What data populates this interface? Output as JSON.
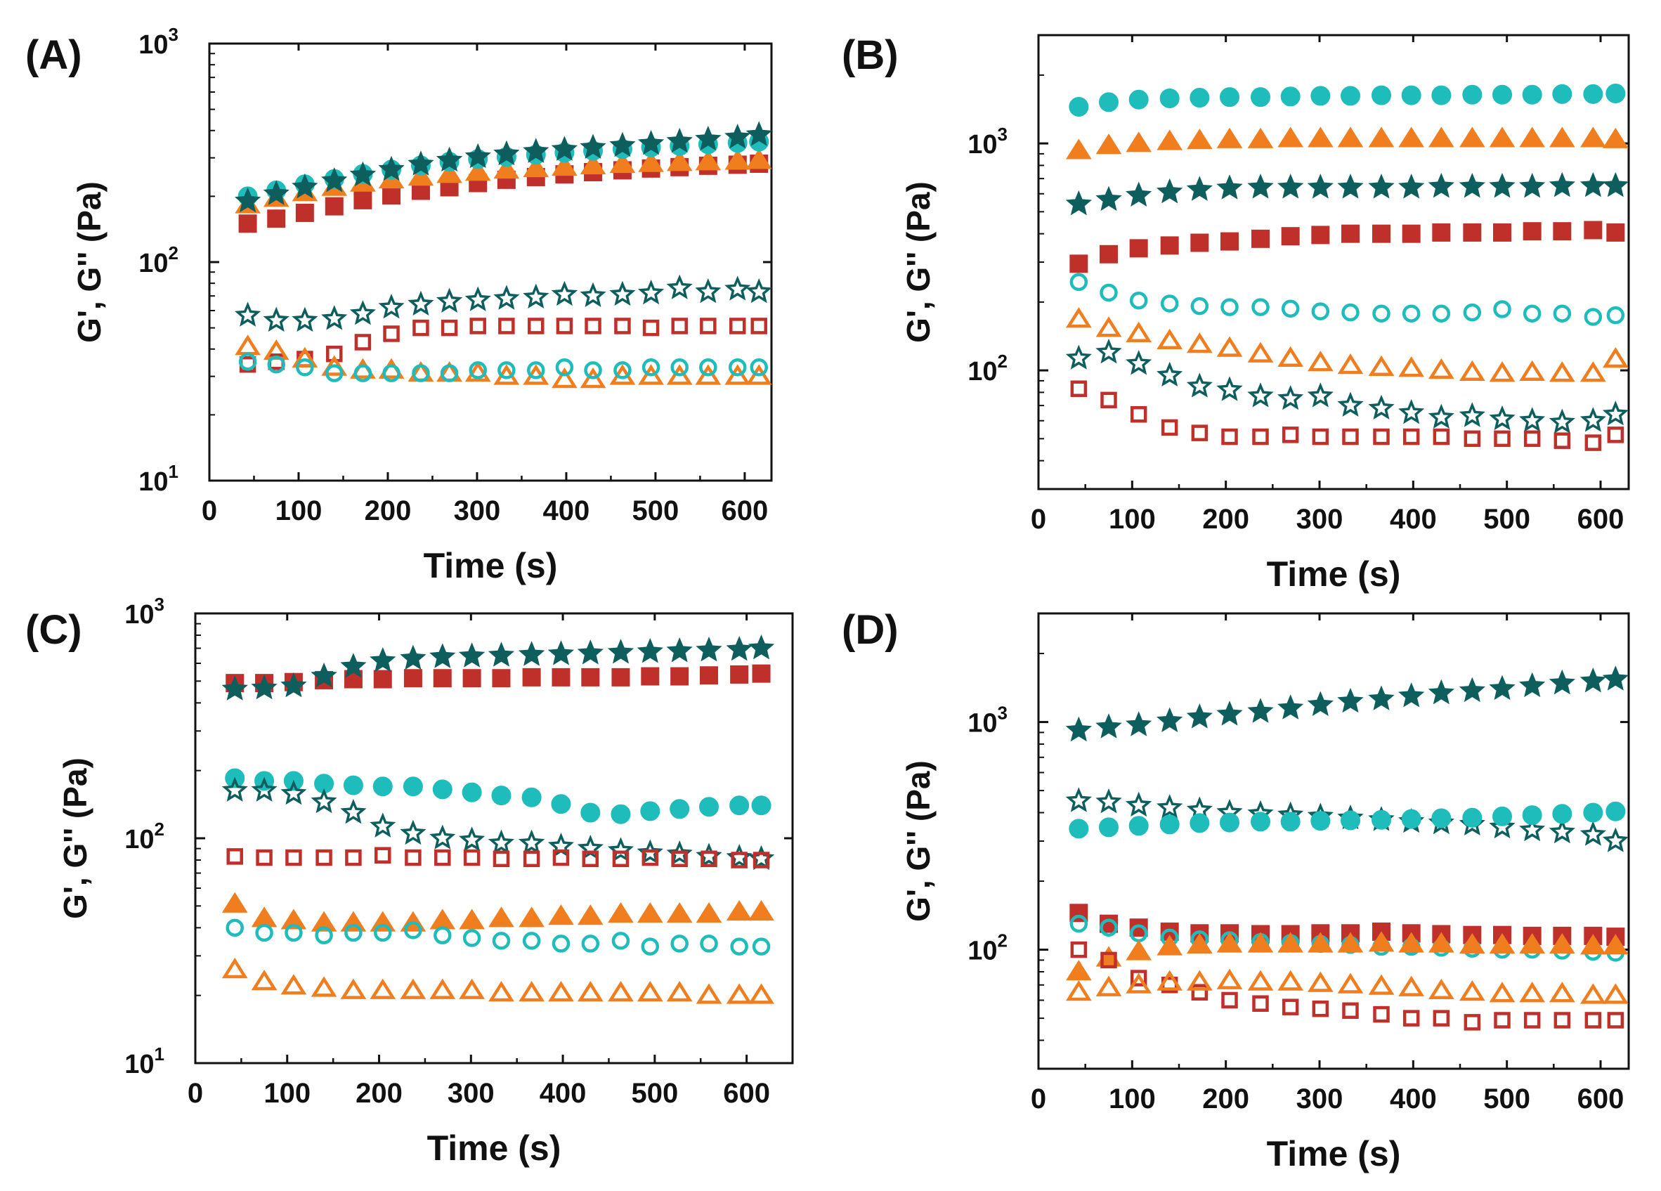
{
  "colors": {
    "red": "#c0302a",
    "orange": "#f07d1e",
    "cyan": "#1fbcbc",
    "teal": "#0f5e5e",
    "axis": "#111111"
  },
  "chart_data": [
    {
      "id": "A",
      "panel_label": "(A)",
      "type": "scatter",
      "xlabel": "Time (s)",
      "ylabel": "G', G'' (Pa)",
      "xlim": [
        0,
        630
      ],
      "ylim": [
        10,
        1000
      ],
      "yscale": "log",
      "xticks": [
        0,
        100,
        200,
        300,
        400,
        500,
        600
      ],
      "yticks": [
        {
          "value": 10,
          "base": "10",
          "exp": "1"
        },
        {
          "value": 100,
          "base": "10",
          "exp": "2"
        },
        {
          "value": 1000,
          "base": "10",
          "exp": "3"
        }
      ],
      "x": [
        43,
        75,
        107,
        140,
        172,
        204,
        237,
        269,
        301,
        333,
        366,
        398,
        430,
        463,
        495,
        527,
        559,
        592,
        616
      ],
      "series": [
        {
          "color": "red",
          "marker": "square",
          "filled": true,
          "values": [
            150,
            158,
            168,
            180,
            192,
            202,
            212,
            220,
            230,
            238,
            245,
            252,
            258,
            263,
            268,
            272,
            276,
            279,
            282
          ]
        },
        {
          "color": "orange",
          "marker": "triangle",
          "filled": true,
          "values": [
            183,
            196,
            208,
            220,
            230,
            238,
            245,
            252,
            258,
            264,
            268,
            272,
            276,
            280,
            283,
            286,
            288,
            290,
            292
          ]
        },
        {
          "color": "cyan",
          "marker": "circle",
          "filled": true,
          "values": [
            200,
            213,
            227,
            240,
            253,
            265,
            277,
            288,
            296,
            303,
            310,
            317,
            323,
            329,
            335,
            340,
            346,
            351,
            356
          ]
        },
        {
          "color": "teal",
          "marker": "star",
          "filled": true,
          "values": [
            190,
            205,
            220,
            235,
            250,
            265,
            280,
            292,
            303,
            312,
            320,
            327,
            334,
            341,
            348,
            356,
            364,
            372,
            382
          ]
        },
        {
          "color": "teal",
          "marker": "star",
          "filled": false,
          "values": [
            57,
            54,
            54,
            55,
            58,
            62,
            64,
            66,
            67,
            68,
            69,
            71,
            70,
            71,
            72,
            76,
            73,
            75,
            73
          ]
        },
        {
          "color": "red",
          "marker": "square",
          "filled": false,
          "values": [
            34,
            35,
            36,
            38,
            43,
            47,
            50,
            50,
            51,
            51,
            51,
            51,
            51,
            51,
            50,
            51,
            51,
            51,
            51
          ]
        },
        {
          "color": "orange",
          "marker": "triangle",
          "filled": false,
          "values": [
            41,
            39,
            36,
            33,
            32,
            32,
            31,
            31,
            31,
            30,
            30,
            29,
            29,
            30,
            30,
            30,
            30,
            30,
            30
          ]
        },
        {
          "color": "cyan",
          "marker": "circle",
          "filled": false,
          "values": [
            35,
            34,
            33,
            31,
            31,
            31,
            31,
            31,
            32,
            32,
            32,
            33,
            32,
            32,
            33,
            33,
            33,
            33,
            33
          ]
        }
      ]
    },
    {
      "id": "B",
      "panel_label": "(B)",
      "type": "scatter",
      "xlabel": "Time (s)",
      "ylabel": "G', G'' (Pa)",
      "xlim": [
        0,
        630
      ],
      "ylim": [
        30,
        3000
      ],
      "yscale": "log",
      "xticks": [
        0,
        100,
        200,
        300,
        400,
        500,
        600
      ],
      "yticks": [
        {
          "value": 100,
          "base": "10",
          "exp": "2"
        },
        {
          "value": 1000,
          "base": "10",
          "exp": "3"
        }
      ],
      "x": [
        43,
        75,
        107,
        140,
        172,
        204,
        237,
        269,
        301,
        333,
        366,
        398,
        430,
        463,
        495,
        527,
        559,
        592,
        616
      ],
      "series": [
        {
          "color": "cyan",
          "marker": "circle",
          "filled": true,
          "values": [
            1450,
            1520,
            1560,
            1580,
            1590,
            1600,
            1600,
            1610,
            1620,
            1620,
            1630,
            1630,
            1630,
            1640,
            1640,
            1640,
            1650,
            1650,
            1660
          ]
        },
        {
          "color": "orange",
          "marker": "triangle",
          "filled": true,
          "values": [
            930,
            980,
            1000,
            1020,
            1030,
            1040,
            1040,
            1050,
            1050,
            1050,
            1050,
            1050,
            1050,
            1050,
            1050,
            1050,
            1050,
            1050,
            1040
          ]
        },
        {
          "color": "teal",
          "marker": "star",
          "filled": true,
          "values": [
            540,
            565,
            590,
            610,
            625,
            635,
            640,
            640,
            640,
            640,
            640,
            640,
            645,
            645,
            645,
            645,
            650,
            650,
            650
          ]
        },
        {
          "color": "red",
          "marker": "square",
          "filled": true,
          "values": [
            295,
            325,
            345,
            355,
            365,
            370,
            380,
            390,
            395,
            400,
            400,
            400,
            405,
            405,
            405,
            410,
            410,
            415,
            405
          ]
        },
        {
          "color": "cyan",
          "marker": "circle",
          "filled": false,
          "values": [
            245,
            220,
            203,
            197,
            192,
            190,
            190,
            187,
            182,
            180,
            178,
            178,
            178,
            180,
            186,
            178,
            178,
            172,
            175
          ]
        },
        {
          "color": "orange",
          "marker": "triangle",
          "filled": false,
          "values": [
            168,
            153,
            145,
            135,
            130,
            125,
            118,
            113,
            108,
            105,
            103,
            102,
            100,
            98,
            97,
            98,
            97,
            97,
            112
          ]
        },
        {
          "color": "teal",
          "marker": "star",
          "filled": false,
          "values": [
            113,
            120,
            107,
            95,
            85,
            82,
            77,
            75,
            77,
            70,
            68,
            65,
            62,
            63,
            61,
            60,
            59,
            60,
            64
          ]
        },
        {
          "color": "red",
          "marker": "square",
          "filled": false,
          "values": [
            83,
            74,
            64,
            56,
            53,
            51,
            51,
            52,
            51,
            51,
            51,
            51,
            51,
            50,
            50,
            50,
            49,
            48,
            52
          ]
        }
      ]
    },
    {
      "id": "C",
      "panel_label": "(C)",
      "type": "scatter",
      "xlabel": "Time (s)",
      "ylabel": "G', G'' (Pa)",
      "xlim": [
        0,
        650
      ],
      "ylim": [
        10,
        1000
      ],
      "yscale": "log",
      "xticks": [
        0,
        100,
        200,
        300,
        400,
        500,
        600
      ],
      "yticks": [
        {
          "value": 10,
          "base": "10",
          "exp": "1"
        },
        {
          "value": 100,
          "base": "10",
          "exp": "2"
        },
        {
          "value": 1000,
          "base": "10",
          "exp": "3"
        }
      ],
      "x": [
        43,
        75,
        107,
        140,
        172,
        204,
        237,
        269,
        301,
        333,
        366,
        398,
        430,
        463,
        495,
        527,
        559,
        592,
        616
      ],
      "series": [
        {
          "color": "red",
          "marker": "square",
          "filled": true,
          "values": [
            490,
            490,
            495,
            505,
            510,
            510,
            515,
            515,
            515,
            515,
            520,
            520,
            520,
            520,
            525,
            525,
            530,
            535,
            540
          ]
        },
        {
          "color": "teal",
          "marker": "star",
          "filled": true,
          "values": [
            460,
            465,
            475,
            525,
            580,
            615,
            630,
            640,
            645,
            650,
            655,
            660,
            665,
            670,
            675,
            680,
            685,
            690,
            700
          ]
        },
        {
          "color": "cyan",
          "marker": "circle",
          "filled": true,
          "values": [
            185,
            180,
            180,
            175,
            172,
            170,
            170,
            165,
            160,
            155,
            152,
            142,
            130,
            128,
            132,
            135,
            138,
            140,
            140
          ]
        },
        {
          "color": "teal",
          "marker": "star",
          "filled": false,
          "values": [
            163,
            163,
            158,
            145,
            130,
            113,
            105,
            100,
            98,
            95,
            95,
            92,
            90,
            88,
            86,
            85,
            83,
            82,
            81
          ]
        },
        {
          "color": "red",
          "marker": "square",
          "filled": false,
          "values": [
            83,
            82,
            82,
            82,
            82,
            84,
            82,
            82,
            82,
            81,
            81,
            82,
            81,
            81,
            82,
            81,
            81,
            80,
            80
          ]
        },
        {
          "color": "orange",
          "marker": "triangle",
          "filled": true,
          "values": [
            51,
            44,
            43,
            42,
            42,
            42,
            42,
            43,
            43,
            44,
            44,
            45,
            45,
            46,
            46,
            46,
            46,
            47,
            47
          ]
        },
        {
          "color": "cyan",
          "marker": "circle",
          "filled": false,
          "values": [
            40,
            38,
            38,
            37,
            38,
            38,
            39,
            37,
            36,
            35,
            35,
            34,
            34,
            35,
            33,
            34,
            34,
            33,
            33
          ]
        },
        {
          "color": "orange",
          "marker": "triangle",
          "filled": false,
          "values": [
            26,
            23,
            22,
            21.5,
            21,
            21,
            21,
            21,
            21,
            20.5,
            20.5,
            20.5,
            20.5,
            20.5,
            20.5,
            20.5,
            20,
            20,
            20
          ]
        }
      ]
    },
    {
      "id": "D",
      "panel_label": "(D)",
      "type": "scatter",
      "xlabel": "Time (s)",
      "ylabel": "G', G'' (Pa)",
      "xlim": [
        0,
        630
      ],
      "ylim": [
        30,
        3000
      ],
      "yscale": "log",
      "xticks": [
        0,
        100,
        200,
        300,
        400,
        500,
        600
      ],
      "yticks": [
        {
          "value": 100,
          "base": "10",
          "exp": "2"
        },
        {
          "value": 1000,
          "base": "10",
          "exp": "3"
        }
      ],
      "x": [
        43,
        75,
        107,
        140,
        172,
        204,
        237,
        269,
        301,
        333,
        366,
        398,
        430,
        463,
        495,
        527,
        559,
        592,
        616
      ],
      "series": [
        {
          "color": "teal",
          "marker": "star",
          "filled": true,
          "values": [
            920,
            950,
            970,
            1010,
            1050,
            1080,
            1110,
            1150,
            1190,
            1230,
            1260,
            1300,
            1340,
            1370,
            1400,
            1440,
            1480,
            1510,
            1540
          ]
        },
        {
          "color": "teal",
          "marker": "star",
          "filled": false,
          "values": [
            450,
            445,
            430,
            420,
            410,
            400,
            395,
            390,
            385,
            378,
            372,
            365,
            360,
            355,
            345,
            335,
            328,
            320,
            300
          ]
        },
        {
          "color": "cyan",
          "marker": "circle",
          "filled": true,
          "values": [
            340,
            345,
            350,
            355,
            360,
            362,
            365,
            365,
            368,
            370,
            372,
            375,
            378,
            380,
            385,
            390,
            395,
            400,
            405
          ]
        },
        {
          "color": "red",
          "marker": "square",
          "filled": true,
          "values": [
            145,
            130,
            125,
            120,
            118,
            118,
            117,
            117,
            118,
            118,
            120,
            118,
            117,
            116,
            116,
            115,
            115,
            115,
            114
          ]
        },
        {
          "color": "cyan",
          "marker": "circle",
          "filled": false,
          "values": [
            130,
            125,
            118,
            113,
            111,
            110,
            108,
            107,
            106,
            105,
            103,
            103,
            102,
            101,
            100,
            100,
            99,
            98,
            97
          ]
        },
        {
          "color": "orange",
          "marker": "triangle",
          "filled": true,
          "values": [
            80,
            92,
            98,
            103,
            105,
            106,
            106,
            106,
            106,
            106,
            107,
            106,
            106,
            105,
            105,
            105,
            105,
            104,
            104
          ]
        },
        {
          "color": "red",
          "marker": "square",
          "filled": false,
          "values": [
            100,
            90,
            75,
            70,
            65,
            60,
            58,
            56,
            55,
            54,
            52,
            50,
            50,
            48,
            49,
            49,
            49,
            49,
            49
          ]
        },
        {
          "color": "orange",
          "marker": "triangle",
          "filled": false,
          "values": [
            65,
            68,
            70,
            72,
            72,
            73,
            72,
            72,
            71,
            70,
            69,
            68,
            66,
            65,
            64,
            64,
            64,
            63,
            63
          ]
        }
      ]
    }
  ]
}
